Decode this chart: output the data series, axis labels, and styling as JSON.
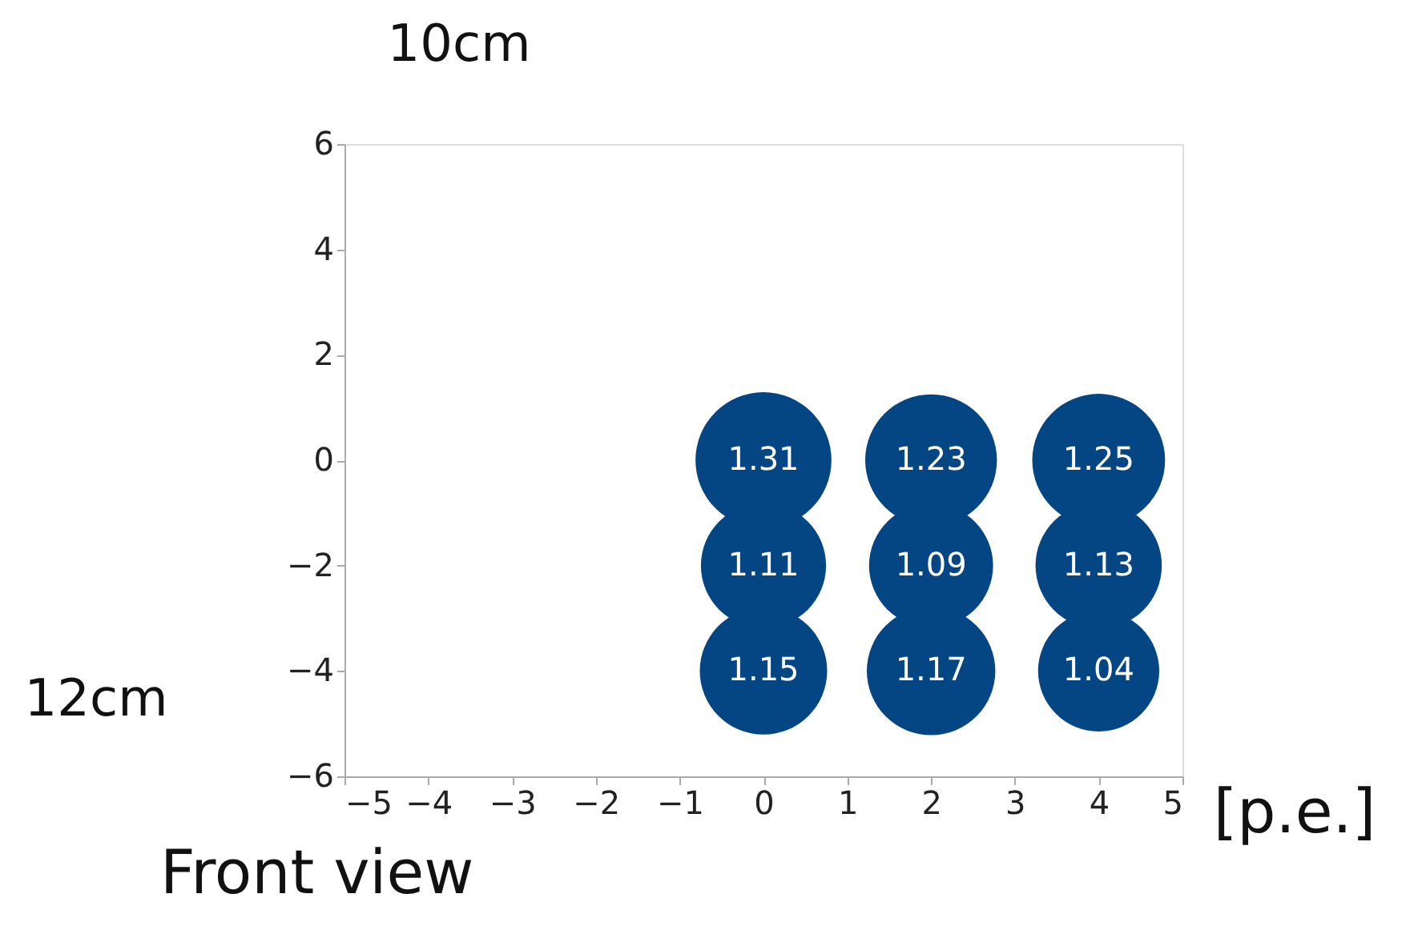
{
  "chart_data": {
    "type": "bubble",
    "x": [
      0,
      2,
      4,
      0,
      2,
      4,
      0,
      2,
      4
    ],
    "values": [
      0,
      0,
      0,
      -2,
      -2,
      -2,
      -4,
      -4,
      -4
    ],
    "sizes": [
      1.31,
      1.23,
      1.25,
      1.11,
      1.09,
      1.13,
      1.15,
      1.17,
      1.04
    ],
    "value_labels": [
      "1.31",
      "1.23",
      "1.25",
      "1.11",
      "1.09",
      "1.13",
      "1.15",
      "1.17",
      "1.04"
    ],
    "color": "#044584",
    "xlim": [
      -5,
      5
    ],
    "xticks": [
      -5,
      -4,
      -3,
      -2,
      -1,
      0,
      1,
      2,
      3,
      4,
      5
    ],
    "ylim": [
      -6,
      6
    ],
    "yticks": [
      -6,
      -4,
      -2,
      0,
      2,
      4,
      6
    ],
    "grid": false,
    "legend": false,
    "annotations": [
      "10cm",
      "12cm",
      "Front view",
      "[p.e.]"
    ]
  }
}
